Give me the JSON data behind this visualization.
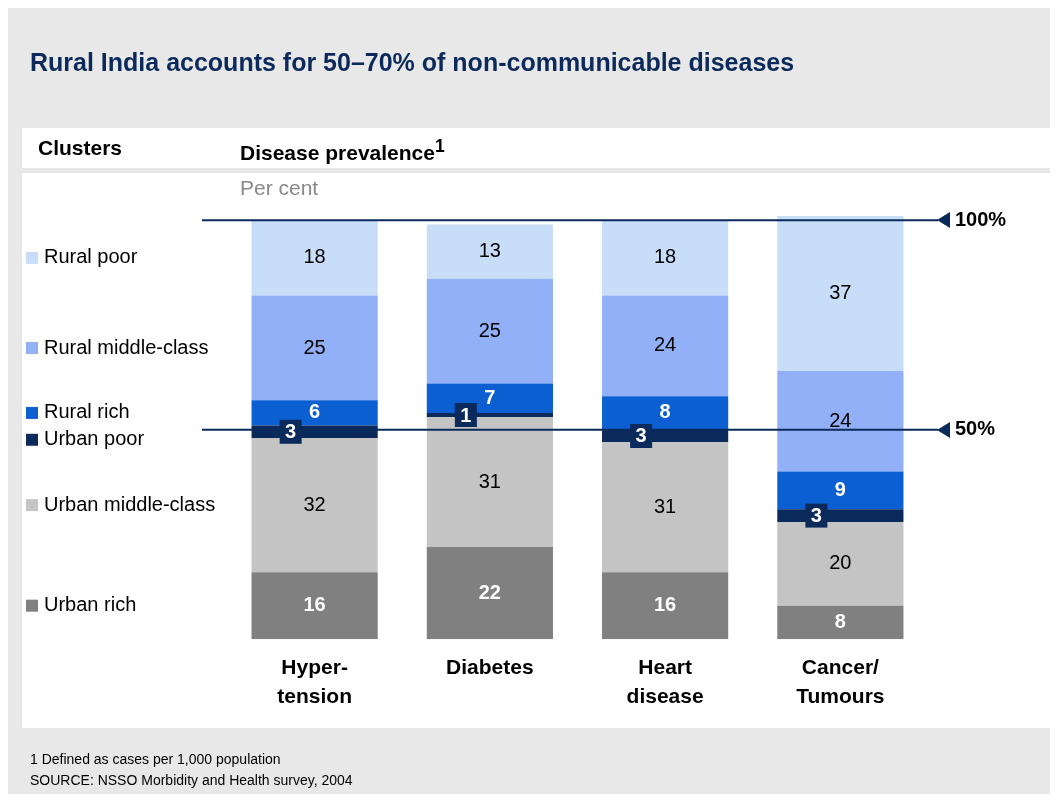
{
  "chart_data": {
    "type": "bar",
    "title": "Rural India accounts for 50–70% of non-communicable diseases",
    "legend_title": "Clusters",
    "ylabel": "Disease prevalence$^{1}$",
    "subtitle": "Per cent",
    "categories": [
      "Hyper- tension",
      "Diabetes",
      "Heart disease",
      "Cancer/ Tumours"
    ],
    "stacked": true,
    "legend": "left",
    "tick_labels": "x",
    "grid": false,
    "data_labels": true,
    "series": [
      {
        "name": "Urban rich",
        "color": "#808080",
        "values": [
          16,
          22,
          16,
          8
        ]
      },
      {
        "name": "Urban middle-class",
        "color": "#c4c4c4",
        "values": [
          32,
          31,
          31,
          20
        ]
      },
      {
        "name": "Urban poor",
        "color": "#0a2a5c",
        "values": [
          3,
          1,
          3,
          3
        ]
      },
      {
        "name": "Rural rich",
        "color": "#0b5fd0",
        "values": [
          6,
          7,
          8,
          9
        ]
      },
      {
        "name": "Rural middle-class",
        "color": "#92b0f8",
        "values": [
          25,
          25,
          24,
          24
        ]
      },
      {
        "name": "Rural poor",
        "color": "#c8ddf8",
        "values": [
          18,
          13,
          18,
          37
        ]
      }
    ],
    "ref_lines": [
      {
        "axis": "y",
        "value": 100,
        "label": "100%",
        "color": "#0a2a5c"
      },
      {
        "axis": "y",
        "value": 50,
        "label": "50%",
        "color": "#0a2a5c"
      }
    ],
    "annotations": [
      "1 Defined as cases per 1,000 population",
      "SOURCE: NSSO Morbidity and Health survey, 2004"
    ]
  }
}
